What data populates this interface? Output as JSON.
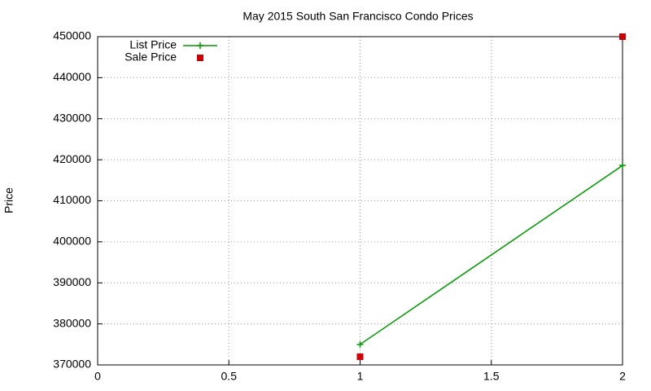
{
  "chart_data": {
    "type": "line",
    "title": "May 2015 South San Francisco Condo Prices",
    "ylabel": "Price",
    "x": [
      1,
      2
    ],
    "series": [
      {
        "name": "List Price",
        "color": "#009900",
        "mode": "lines+points",
        "values": [
          375000,
          418600
        ]
      },
      {
        "name": "Sale Price",
        "color": "#cc0000",
        "mode": "points",
        "values": [
          372000,
          450000
        ]
      }
    ],
    "xlim": [
      0,
      2
    ],
    "xticks": [
      0,
      0.5,
      1,
      1.5,
      2
    ],
    "ylim": [
      370000,
      450000
    ],
    "yticks": [
      370000,
      380000,
      390000,
      400000,
      410000,
      420000,
      430000,
      440000,
      450000
    ],
    "grid": true,
    "legend": "top-left"
  }
}
